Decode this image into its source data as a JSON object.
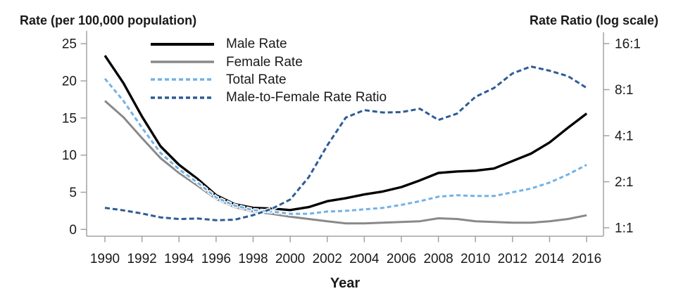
{
  "titles": {
    "left_axis": "Rate (per 100,000 population)",
    "right_axis": "Rate Ratio (log scale)",
    "x_axis": "Year"
  },
  "chart_data": {
    "type": "line",
    "title": "",
    "x_axis_label": "Year",
    "years": [
      1990,
      1991,
      1992,
      1993,
      1994,
      1995,
      1996,
      1997,
      1998,
      1999,
      2000,
      2001,
      2002,
      2003,
      2004,
      2005,
      2006,
      2007,
      2008,
      2009,
      2010,
      2011,
      2012,
      2013,
      2014,
      2015,
      2016
    ],
    "x_tick_labels": [
      "1990",
      "1992",
      "1994",
      "1996",
      "1998",
      "2000",
      "2002",
      "2004",
      "2006",
      "2008",
      "2010",
      "2012",
      "2014",
      "2016"
    ],
    "left_axis": {
      "label": "Rate (per 100,000 population)",
      "scale": "linear",
      "range": [
        0,
        25
      ],
      "tick_values": [
        25,
        20,
        15,
        10,
        5,
        0
      ],
      "tick_labels": [
        "25",
        "20",
        "15",
        "10",
        "5",
        "0"
      ]
    },
    "right_axis": {
      "label": "Rate Ratio (log scale)",
      "scale": "log2",
      "range": [
        1,
        16
      ],
      "tick_values": [
        16,
        8,
        4,
        2,
        1
      ],
      "tick_labels": [
        "16:1",
        "8:1",
        "4:1",
        "2:1",
        "1:1"
      ]
    },
    "legend_position": "inside-top-left",
    "grid": false,
    "colors": {
      "axis": "#a3a3a3",
      "text": "#1a1a1a",
      "background": "#ffffff"
    },
    "series": [
      {
        "name": "Male Rate",
        "axis": "left",
        "color": "#000000",
        "style": "solid",
        "width": 3.4,
        "values": [
          23.4,
          19.7,
          15.2,
          11.2,
          8.7,
          6.8,
          4.6,
          3.4,
          2.9,
          2.8,
          2.6,
          3.0,
          3.8,
          4.2,
          4.7,
          5.1,
          5.7,
          6.6,
          7.6,
          7.8,
          7.9,
          8.2,
          9.2,
          10.2,
          11.7,
          13.7,
          15.6
        ]
      },
      {
        "name": "Female Rate",
        "axis": "left",
        "color": "#898989",
        "style": "solid",
        "width": 3,
        "values": [
          17.3,
          15.1,
          12.3,
          9.6,
          7.6,
          5.9,
          4.1,
          3.0,
          2.4,
          2.1,
          1.7,
          1.4,
          1.1,
          0.8,
          0.8,
          0.9,
          1.0,
          1.1,
          1.5,
          1.4,
          1.1,
          1.0,
          0.9,
          0.9,
          1.1,
          1.4,
          1.9
        ]
      },
      {
        "name": "Total Rate",
        "axis": "left",
        "color": "#72b2e6",
        "style": "dashed",
        "dash": [
          6,
          4
        ],
        "width": 3,
        "values": [
          20.3,
          17.3,
          13.7,
          10.3,
          8.1,
          6.3,
          4.3,
          3.2,
          2.6,
          2.4,
          2.1,
          2.1,
          2.4,
          2.5,
          2.7,
          2.9,
          3.3,
          3.8,
          4.4,
          4.6,
          4.5,
          4.5,
          5.0,
          5.5,
          6.3,
          7.4,
          8.7
        ]
      },
      {
        "name": "Male-to-Female Rate Ratio",
        "axis": "right",
        "color": "#2d5c94",
        "style": "dashed",
        "dash": [
          7,
          4
        ],
        "width": 3,
        "values": [
          1.35,
          1.3,
          1.24,
          1.17,
          1.14,
          1.15,
          1.12,
          1.13,
          1.21,
          1.33,
          1.53,
          2.14,
          3.45,
          5.25,
          5.88,
          5.67,
          5.7,
          6.0,
          5.07,
          5.57,
          7.18,
          8.2,
          10.22,
          11.33,
          10.64,
          9.79,
          8.21
        ]
      }
    ]
  }
}
